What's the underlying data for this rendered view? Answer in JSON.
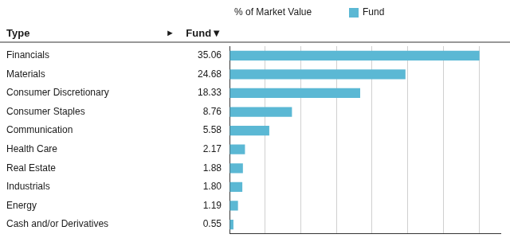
{
  "chart_data": {
    "type": "bar",
    "orientation": "horizontal",
    "categories": [
      "Financials",
      "Materials",
      "Consumer Discretionary",
      "Consumer Staples",
      "Communication",
      "Health Care",
      "Real Estate",
      "Industrials",
      "Energy",
      "Cash and/or Derivatives"
    ],
    "series": [
      {
        "name": "Fund",
        "color": "#5BB8D4",
        "values": [
          35.06,
          24.68,
          18.33,
          8.76,
          5.58,
          2.17,
          1.88,
          1.8,
          1.19,
          0.55
        ]
      }
    ],
    "value_labels": [
      "35.06",
      "24.68",
      "18.33",
      "8.76",
      "5.58",
      "2.17",
      "1.88",
      "1.80",
      "1.19",
      "0.55"
    ],
    "data_labels": true,
    "annotations": [
      "Type",
      "►",
      "Fund▼",
      "% of Market Value"
    ],
    "xlim": [
      0,
      38
    ],
    "xticks": [
      0,
      5,
      10,
      15,
      20,
      25,
      30,
      35
    ],
    "grid": true,
    "legend": "top",
    "tick_labels": "y"
  }
}
